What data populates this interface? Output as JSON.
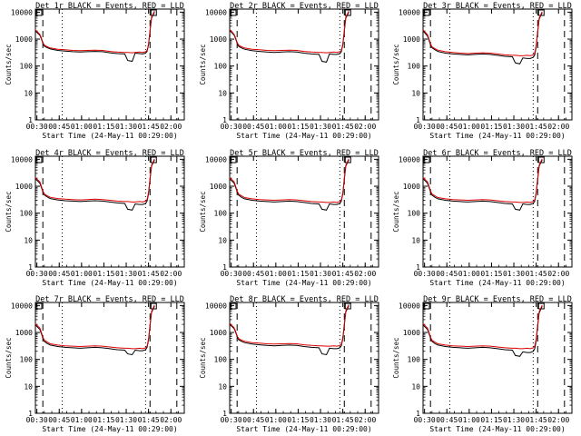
{
  "colors": {
    "background": "#ffffff",
    "axes": "#000000",
    "events": "#000000",
    "lld": "#dd0000"
  },
  "shared": {
    "xlabel": "Start Time (24-May-11 00:29:00)",
    "ylabel": "Counts/sec",
    "x_tick_labels": [
      "00:30",
      "00:45",
      "01:00",
      "01:15",
      "01:30",
      "01:45",
      "02:00"
    ],
    "x_tick_minutes": [
      1,
      16,
      31,
      46,
      61,
      76,
      91
    ],
    "xlim_minutes": [
      0,
      100
    ],
    "y_tick_labels": [
      "1",
      "10",
      "100",
      "1000",
      "10000"
    ],
    "y_tick_values": [
      1,
      10,
      100,
      1000,
      10000
    ],
    "ylim": [
      1,
      13000
    ],
    "yscale": "log",
    "dashed_vlines_minutes": [
      5,
      77,
      95
    ],
    "dotted_vlines_minutes": [
      18,
      74
    ],
    "marker_box_minutes": [
      0,
      77
    ]
  },
  "chart_data": [
    {
      "type": "line",
      "title": "Det 1r BLACK = Events, RED = LLD",
      "xlabel": "Start Time (24-May-11 00:29:00)",
      "ylabel": "Counts/sec",
      "x": [
        0,
        3,
        4,
        5,
        6,
        8,
        10,
        15,
        20,
        25,
        30,
        35,
        40,
        45,
        50,
        55,
        60,
        62,
        65,
        67,
        70,
        72,
        74,
        75,
        76,
        77,
        78,
        80
      ],
      "series": [
        {
          "name": "Events",
          "values": [
            2000,
            1400,
            1000,
            700,
            550,
            480,
            430,
            380,
            360,
            340,
            330,
            340,
            350,
            340,
            310,
            290,
            280,
            160,
            150,
            300,
            290,
            280,
            300,
            350,
            600,
            2000,
            6000,
            10000
          ]
        },
        {
          "name": "LLD",
          "values": [
            2200,
            1500,
            1100,
            750,
            600,
            520,
            470,
            420,
            400,
            380,
            370,
            380,
            390,
            380,
            350,
            330,
            320,
            320,
            310,
            320,
            330,
            320,
            340,
            380,
            650,
            2200,
            6500,
            11000
          ]
        }
      ]
    },
    {
      "type": "line",
      "title": "Det 2r BLACK = Events, RED = LLD",
      "xlabel": "Start Time (24-May-11 00:29:00)",
      "ylabel": "Counts/sec",
      "x": [
        0,
        3,
        4,
        5,
        6,
        8,
        10,
        15,
        20,
        25,
        30,
        35,
        40,
        45,
        50,
        55,
        60,
        62,
        65,
        67,
        70,
        72,
        74,
        75,
        76,
        77,
        78,
        80
      ],
      "series": [
        {
          "name": "Events",
          "values": [
            2100,
            1400,
            1000,
            700,
            540,
            470,
            420,
            370,
            350,
            330,
            320,
            330,
            340,
            330,
            300,
            280,
            270,
            150,
            140,
            280,
            270,
            270,
            290,
            340,
            600,
            2000,
            6000,
            10000
          ]
        },
        {
          "name": "LLD",
          "values": [
            2300,
            1500,
            1100,
            750,
            600,
            520,
            470,
            420,
            400,
            380,
            370,
            380,
            390,
            380,
            350,
            330,
            320,
            320,
            310,
            320,
            330,
            320,
            340,
            380,
            650,
            2200,
            6500,
            11000
          ]
        }
      ]
    },
    {
      "type": "line",
      "title": "Det 3r BLACK = Events, RED = LLD",
      "xlabel": "Start Time (24-May-11 00:29:00)",
      "ylabel": "Counts/sec",
      "x": [
        0,
        3,
        4,
        5,
        6,
        8,
        10,
        15,
        20,
        25,
        30,
        35,
        40,
        45,
        50,
        55,
        60,
        62,
        65,
        67,
        70,
        72,
        74,
        75,
        76,
        77,
        78,
        80
      ],
      "series": [
        {
          "name": "Events",
          "values": [
            2000,
            1300,
            900,
            620,
            480,
            400,
            350,
            300,
            280,
            270,
            260,
            270,
            280,
            270,
            250,
            230,
            220,
            130,
            120,
            200,
            190,
            190,
            210,
            260,
            500,
            1800,
            5500,
            9500
          ]
        },
        {
          "name": "LLD",
          "values": [
            2200,
            1450,
            1000,
            680,
            520,
            440,
            390,
            340,
            320,
            300,
            290,
            300,
            310,
            300,
            280,
            260,
            250,
            250,
            240,
            240,
            250,
            240,
            260,
            300,
            560,
            2000,
            6000,
            10500
          ]
        }
      ]
    },
    {
      "type": "line",
      "title": "Det 4r BLACK = Events, RED = LLD",
      "xlabel": "Start Time (24-May-11 00:29:00)",
      "ylabel": "Counts/sec",
      "x": [
        0,
        3,
        4,
        5,
        6,
        8,
        10,
        15,
        20,
        25,
        30,
        35,
        40,
        45,
        50,
        55,
        60,
        62,
        65,
        67,
        70,
        72,
        74,
        75,
        76,
        77,
        78,
        80
      ],
      "series": [
        {
          "name": "Events",
          "values": [
            1900,
            1300,
            900,
            620,
            480,
            400,
            350,
            310,
            290,
            280,
            270,
            280,
            290,
            280,
            260,
            240,
            230,
            140,
            130,
            220,
            210,
            210,
            230,
            280,
            520,
            1800,
            5500,
            9500
          ]
        },
        {
          "name": "LLD",
          "values": [
            2100,
            1450,
            1000,
            680,
            520,
            440,
            390,
            350,
            330,
            320,
            310,
            320,
            330,
            320,
            300,
            280,
            270,
            270,
            260,
            260,
            270,
            260,
            280,
            320,
            580,
            2000,
            6000,
            10500
          ]
        }
      ]
    },
    {
      "type": "line",
      "title": "Det 5r BLACK = Events, RED = LLD",
      "xlabel": "Start Time (24-May-11 00:29:00)",
      "ylabel": "Counts/sec",
      "x": [
        0,
        3,
        4,
        5,
        6,
        8,
        10,
        15,
        20,
        25,
        30,
        35,
        40,
        45,
        50,
        55,
        60,
        62,
        65,
        67,
        70,
        72,
        74,
        75,
        76,
        77,
        78,
        80
      ],
      "series": [
        {
          "name": "Events",
          "values": [
            1900,
            1300,
            900,
            620,
            470,
            390,
            340,
            300,
            280,
            270,
            260,
            270,
            280,
            270,
            250,
            230,
            220,
            140,
            130,
            220,
            210,
            210,
            230,
            280,
            520,
            1800,
            5500,
            9500
          ]
        },
        {
          "name": "LLD",
          "values": [
            2100,
            1450,
            1000,
            680,
            520,
            440,
            380,
            340,
            320,
            310,
            300,
            310,
            320,
            310,
            290,
            270,
            260,
            260,
            250,
            250,
            260,
            250,
            270,
            310,
            570,
            2000,
            6000,
            10500
          ]
        }
      ]
    },
    {
      "type": "line",
      "title": "Det 6r BLACK = Events, RED = LLD",
      "xlabel": "Start Time (24-May-11 00:29:00)",
      "ylabel": "Counts/sec",
      "x": [
        0,
        3,
        4,
        5,
        6,
        8,
        10,
        15,
        20,
        25,
        30,
        35,
        40,
        45,
        50,
        55,
        60,
        62,
        65,
        67,
        70,
        72,
        74,
        75,
        76,
        77,
        78,
        80
      ],
      "series": [
        {
          "name": "Events",
          "values": [
            1900,
            1300,
            900,
            620,
            470,
            390,
            340,
            300,
            280,
            270,
            260,
            270,
            280,
            270,
            250,
            230,
            220,
            140,
            130,
            220,
            210,
            210,
            230,
            280,
            520,
            1800,
            5500,
            9500
          ]
        },
        {
          "name": "LLD",
          "values": [
            2100,
            1450,
            1000,
            680,
            520,
            440,
            380,
            340,
            320,
            310,
            300,
            310,
            320,
            310,
            290,
            270,
            260,
            260,
            250,
            250,
            260,
            250,
            270,
            310,
            570,
            2000,
            6000,
            10500
          ]
        }
      ]
    },
    {
      "type": "line",
      "title": "Det 7r BLACK = Events, RED = LLD",
      "xlabel": "Start Time (24-May-11 00:29:00)",
      "ylabel": "Counts/sec",
      "x": [
        0,
        3,
        4,
        5,
        6,
        8,
        10,
        15,
        20,
        25,
        30,
        35,
        40,
        45,
        50,
        55,
        60,
        62,
        65,
        67,
        70,
        72,
        74,
        75,
        76,
        77,
        78,
        80
      ],
      "series": [
        {
          "name": "Events",
          "values": [
            1900,
            1300,
            900,
            620,
            470,
            390,
            340,
            300,
            280,
            270,
            260,
            270,
            280,
            270,
            250,
            230,
            220,
            160,
            150,
            220,
            210,
            210,
            230,
            280,
            520,
            1800,
            5500,
            9500
          ]
        },
        {
          "name": "LLD",
          "values": [
            2100,
            1450,
            1000,
            680,
            520,
            440,
            380,
            340,
            320,
            310,
            300,
            310,
            320,
            310,
            290,
            270,
            260,
            260,
            250,
            250,
            260,
            250,
            270,
            310,
            570,
            2000,
            6000,
            10500
          ]
        }
      ]
    },
    {
      "type": "line",
      "title": "Det 8r BLACK = Events, RED = LLD",
      "xlabel": "Start Time (24-May-11 00:29:00)",
      "ylabel": "Counts/sec",
      "x": [
        0,
        3,
        4,
        5,
        6,
        8,
        10,
        15,
        20,
        25,
        30,
        35,
        40,
        45,
        50,
        55,
        60,
        62,
        65,
        67,
        70,
        72,
        74,
        75,
        76,
        77,
        78,
        80
      ],
      "series": [
        {
          "name": "Events",
          "values": [
            2000,
            1400,
            1000,
            700,
            540,
            470,
            420,
            370,
            350,
            330,
            320,
            330,
            340,
            330,
            300,
            280,
            270,
            160,
            150,
            260,
            250,
            250,
            270,
            320,
            580,
            1900,
            5800,
            9800
          ]
        },
        {
          "name": "LLD",
          "values": [
            2200,
            1500,
            1100,
            750,
            600,
            520,
            470,
            420,
            400,
            380,
            370,
            380,
            390,
            380,
            350,
            330,
            320,
            320,
            310,
            310,
            320,
            310,
            330,
            370,
            640,
            2100,
            6300,
            10800
          ]
        }
      ]
    },
    {
      "type": "line",
      "title": "Det 9r BLACK = Events, RED = LLD",
      "xlabel": "Start Time (24-May-11 00:29:00)",
      "ylabel": "Counts/sec",
      "x": [
        0,
        3,
        4,
        5,
        6,
        8,
        10,
        15,
        20,
        25,
        30,
        35,
        40,
        45,
        50,
        55,
        60,
        62,
        65,
        67,
        70,
        72,
        74,
        75,
        76,
        77,
        78,
        80
      ],
      "series": [
        {
          "name": "Events",
          "values": [
            1900,
            1300,
            900,
            620,
            470,
            390,
            340,
            300,
            280,
            270,
            260,
            270,
            280,
            270,
            250,
            230,
            220,
            140,
            130,
            190,
            180,
            180,
            200,
            250,
            480,
            1700,
            5300,
            9300
          ]
        },
        {
          "name": "LLD",
          "values": [
            2100,
            1450,
            1000,
            680,
            520,
            440,
            380,
            340,
            320,
            310,
            300,
            310,
            320,
            310,
            290,
            270,
            260,
            260,
            250,
            250,
            260,
            250,
            270,
            310,
            560,
            1950,
            5900,
            10300
          ]
        }
      ]
    }
  ]
}
